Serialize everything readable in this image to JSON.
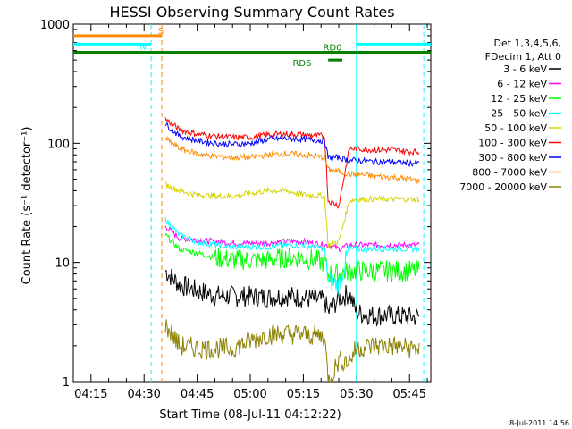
{
  "chart_data": {
    "type": "line",
    "title": "HESSI Observing Summary Count Rates",
    "xlabel": "Start Time (08-Jul-11 04:12:22)",
    "ylabel": "Count Rate (s⁻¹ detector⁻¹)",
    "yscale": "log",
    "ylim": [
      1,
      1000
    ],
    "xlim": [
      "04:10",
      "05:51"
    ],
    "x_ticks": [
      "04:15",
      "04:30",
      "04:45",
      "05:00",
      "05:15",
      "05:30",
      "05:45"
    ],
    "y_ticks": [
      "1",
      "10",
      "100",
      "1000"
    ],
    "timestamp": "8-Jul-2011 14:56",
    "legend": {
      "placement": "right",
      "header": [
        "Det 1,3,4,5,6,",
        "FDecim 1, Att 0"
      ]
    },
    "series": [
      {
        "name": "3 - 6 keV",
        "color": "#000000",
        "x": [
          "04:36",
          "04:40",
          "04:45",
          "04:50",
          "04:55",
          "05:00",
          "05:05",
          "05:10",
          "05:15",
          "05:21",
          "05:22",
          "05:25",
          "05:28",
          "05:30",
          "05:35",
          "05:40",
          "05:45",
          "05:48"
        ],
        "y": [
          8.5,
          6.5,
          5.8,
          5.3,
          5.2,
          5.2,
          5.1,
          5.3,
          5.0,
          4.8,
          3.8,
          5.0,
          5.5,
          3.8,
          3.6,
          3.6,
          3.5,
          3.5
        ]
      },
      {
        "name": "6 - 12 keV",
        "color": "#ff00ff",
        "x": [
          "04:36",
          "04:40",
          "04:45",
          "04:50",
          "04:55",
          "05:00",
          "05:05",
          "05:10",
          "05:15",
          "05:21",
          "05:22",
          "05:25",
          "05:28",
          "05:30",
          "05:35",
          "05:40",
          "05:45",
          "05:48"
        ],
        "y": [
          20,
          16,
          15.5,
          15,
          14.5,
          14.5,
          14.5,
          15,
          15,
          14,
          14,
          13,
          14,
          14,
          14,
          14,
          14,
          14
        ]
      },
      {
        "name": "12 - 25 keV",
        "color": "#00ff00",
        "x": [
          "04:36",
          "04:40",
          "04:45",
          "04:50",
          "04:55",
          "05:00",
          "05:05",
          "05:10",
          "05:15",
          "05:21",
          "05:22",
          "05:25",
          "05:28",
          "05:30",
          "05:35",
          "05:40",
          "05:45",
          "05:48"
        ],
        "y": [
          17,
          13,
          12,
          11,
          10.5,
          10.5,
          10.5,
          11,
          11,
          10,
          8,
          8,
          8.5,
          8.5,
          8.5,
          8.5,
          8.5,
          8.5
        ]
      },
      {
        "name": "25 - 50 keV",
        "color": "#00ffff",
        "x": [
          "04:36",
          "04:40",
          "04:45",
          "04:50",
          "04:55",
          "05:00",
          "05:05",
          "05:10",
          "05:15",
          "05:21",
          "05:22",
          "05:25",
          "05:28",
          "05:30",
          "05:35",
          "05:40",
          "05:45",
          "05:48"
        ],
        "y": [
          23,
          17,
          15,
          14,
          13.5,
          13.5,
          13.5,
          14,
          14,
          13,
          7,
          6.5,
          13,
          13,
          13,
          13,
          13,
          13
        ]
      },
      {
        "name": "50 - 100 keV",
        "color": "#d4d400",
        "x": [
          "04:36",
          "04:40",
          "04:45",
          "04:50",
          "04:55",
          "05:00",
          "05:05",
          "05:10",
          "05:15",
          "05:21",
          "05:22",
          "05:25",
          "05:28",
          "05:30",
          "05:35",
          "05:40",
          "05:45",
          "05:48"
        ],
        "y": [
          45,
          40,
          37,
          36,
          36,
          38,
          40,
          40,
          37,
          36,
          14,
          15,
          33,
          34,
          34,
          34,
          34,
          34
        ]
      },
      {
        "name": "100 - 300 keV",
        "color": "#ff0000",
        "x": [
          "04:36",
          "04:40",
          "04:45",
          "04:50",
          "04:55",
          "05:00",
          "05:05",
          "05:10",
          "05:15",
          "05:21",
          "05:22",
          "05:25",
          "05:28",
          "05:30",
          "05:35",
          "05:40",
          "05:45",
          "05:48"
        ],
        "y": [
          160,
          130,
          120,
          115,
          112,
          112,
          118,
          120,
          118,
          115,
          33,
          30,
          90,
          90,
          88,
          88,
          85,
          85
        ]
      },
      {
        "name": "300 - 800 keV",
        "color": "#0000ff",
        "x": [
          "04:36",
          "04:40",
          "04:45",
          "04:50",
          "04:55",
          "05:00",
          "05:05",
          "05:10",
          "05:15",
          "05:21",
          "05:22",
          "05:25",
          "05:28",
          "05:30",
          "05:35",
          "05:40",
          "05:45",
          "05:48"
        ],
        "y": [
          145,
          115,
          105,
          100,
          98,
          100,
          108,
          110,
          108,
          105,
          76,
          76,
          72,
          72,
          70,
          70,
          68,
          68
        ]
      },
      {
        "name": "800 - 7000 keV",
        "color": "#ff8c00",
        "x": [
          "04:36",
          "04:40",
          "04:45",
          "04:50",
          "04:55",
          "05:00",
          "05:05",
          "05:10",
          "05:15",
          "05:21",
          "05:22",
          "05:25",
          "05:28",
          "05:30",
          "05:35",
          "05:40",
          "05:45",
          "05:48"
        ],
        "y": [
          110,
          90,
          82,
          78,
          76,
          76,
          80,
          82,
          80,
          76,
          60,
          58,
          55,
          55,
          53,
          52,
          50,
          48
        ]
      },
      {
        "name": "7000 - 20000 keV",
        "color": "#8b8000",
        "x": [
          "04:36",
          "04:40",
          "04:45",
          "04:50",
          "04:55",
          "05:00",
          "05:05",
          "05:10",
          "05:15",
          "05:21",
          "05:22",
          "05:25",
          "05:28",
          "05:30",
          "05:35",
          "05:40",
          "05:45",
          "05:48"
        ],
        "y": [
          3.0,
          2.0,
          1.9,
          1.9,
          1.9,
          2.2,
          2.5,
          2.5,
          2.5,
          2.4,
          1.0,
          1.5,
          1.5,
          1.9,
          2.0,
          2.0,
          1.9,
          1.9
        ]
      }
    ],
    "flags": {
      "saa": {
        "label": "S",
        "start": "04:10",
        "end": "04:35",
        "level": 800,
        "color": "#ff8c00"
      },
      "night": [
        {
          "label": "N",
          "start": "04:10",
          "end": "04:32",
          "level": 680,
          "color": "#00ffff"
        },
        {
          "label": "",
          "start": "05:30",
          "end": "05:51",
          "level": 680,
          "color": "#00ffff"
        }
      ],
      "rd0": {
        "label": "RD0",
        "start": "04:10",
        "end": "05:51",
        "level": 580,
        "color": "#008000"
      },
      "rd6": {
        "label": "RD6",
        "start": "05:22",
        "end": "05:26",
        "level": 500,
        "color": "#008000"
      },
      "markers": [
        {
          "x": "04:32",
          "color": "#00ffff",
          "style": "dashed"
        },
        {
          "x": "04:35",
          "color": "#ff8c00",
          "style": "dashed"
        },
        {
          "x": "05:30",
          "color": "#00ffff",
          "style": "solid"
        },
        {
          "x": "05:49",
          "color": "#00ffff",
          "style": "dashed"
        }
      ]
    }
  }
}
